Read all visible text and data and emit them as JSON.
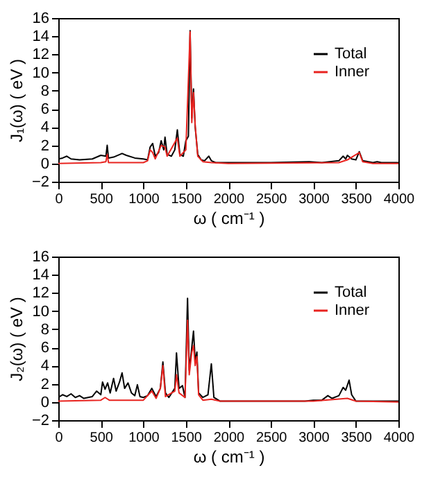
{
  "chart_data": [
    {
      "type": "line",
      "xlabel": "ω ( cm⁻¹ )",
      "ylabel": "J₁(ω) ( eV )",
      "xlim": [
        0,
        4000
      ],
      "xticks": [
        0,
        500,
        1000,
        1500,
        2000,
        2500,
        3000,
        3500,
        4000
      ],
      "ylim": [
        -2,
        16
      ],
      "yticks": [
        -2,
        0,
        2,
        4,
        6,
        8,
        10,
        12,
        14,
        16
      ],
      "grid": false,
      "legend": "top right",
      "line_style": "solid",
      "series": [
        {
          "name": "Total",
          "color": "#000000",
          "x": [
            0,
            50,
            100,
            150,
            250,
            400,
            500,
            560,
            575,
            590,
            650,
            750,
            800,
            900,
            1000,
            1050,
            1080,
            1110,
            1140,
            1180,
            1210,
            1240,
            1255,
            1280,
            1330,
            1370,
            1400,
            1430,
            1470,
            1500,
            1530,
            1550,
            1570,
            1590,
            1610,
            1640,
            1680,
            1720,
            1770,
            1800,
            1850,
            2000,
            2500,
            2950,
            3100,
            3300,
            3350,
            3380,
            3400,
            3450,
            3500,
            3540,
            3580,
            3700,
            3750,
            3800,
            4000
          ],
          "values": [
            0.5,
            0.6,
            0.8,
            0.5,
            0.4,
            0.5,
            0.9,
            0.8,
            2.0,
            0.6,
            0.7,
            1.1,
            0.9,
            0.6,
            0.5,
            0.4,
            1.8,
            2.2,
            0.8,
            1.2,
            2.5,
            1.5,
            2.9,
            1.0,
            0.8,
            1.5,
            3.7,
            1.0,
            0.8,
            2.5,
            3.0,
            14.6,
            5.0,
            8.2,
            4.0,
            1.0,
            0.4,
            0.3,
            0.8,
            0.3,
            0.1,
            0.1,
            0.1,
            0.2,
            0.1,
            0.3,
            0.8,
            0.5,
            0.9,
            0.5,
            0.4,
            1.3,
            0.3,
            0.1,
            0.2,
            0.1,
            0.1
          ]
        },
        {
          "name": "Inner",
          "color": "#e8231f",
          "x": [
            0,
            500,
            560,
            575,
            590,
            1000,
            1050,
            1080,
            1110,
            1140,
            1210,
            1255,
            1280,
            1400,
            1430,
            1500,
            1550,
            1570,
            1590,
            1610,
            1640,
            1700,
            1800,
            2000,
            3300,
            3400,
            3540,
            3580,
            3700,
            4000
          ],
          "values": [
            0.0,
            0.1,
            0.2,
            1.0,
            0.1,
            0.1,
            0.3,
            1.5,
            1.2,
            0.5,
            2.0,
            1.8,
            0.8,
            2.8,
            0.8,
            1.5,
            14.5,
            4.5,
            7.8,
            4.2,
            0.8,
            0.2,
            0.1,
            0.0,
            0.1,
            0.4,
            1.2,
            0.2,
            0.0,
            0.0
          ]
        }
      ]
    },
    {
      "type": "line",
      "xlabel": "ω ( cm⁻¹ )",
      "ylabel": "J₂(ω) ( eV )",
      "xlim": [
        0,
        4000
      ],
      "xticks": [
        0,
        500,
        1000,
        1500,
        2000,
        2500,
        3000,
        3500,
        4000
      ],
      "ylim": [
        -2,
        16
      ],
      "yticks": [
        -2,
        0,
        2,
        4,
        6,
        8,
        10,
        12,
        14,
        16
      ],
      "grid": false,
      "legend": "top right",
      "line_style": "solid",
      "series": [
        {
          "name": "Total",
          "color": "#000000",
          "x": [
            0,
            50,
            100,
            150,
            200,
            250,
            300,
            400,
            450,
            500,
            520,
            550,
            580,
            610,
            650,
            680,
            720,
            750,
            780,
            820,
            860,
            900,
            930,
            960,
            1000,
            1050,
            1100,
            1150,
            1200,
            1230,
            1260,
            1300,
            1370,
            1390,
            1420,
            1460,
            1490,
            1520,
            1540,
            1570,
            1590,
            1610,
            1630,
            1650,
            1700,
            1760,
            1800,
            1830,
            1900,
            2000,
            2900,
            3000,
            3100,
            3170,
            3220,
            3300,
            3350,
            3380,
            3420,
            3450,
            3500,
            4000
          ],
          "values": [
            0.5,
            0.8,
            0.6,
            0.9,
            0.5,
            0.7,
            0.4,
            0.6,
            1.2,
            0.8,
            2.2,
            1.4,
            2.1,
            1.0,
            2.6,
            1.2,
            2.2,
            3.2,
            1.5,
            2.1,
            1.0,
            0.7,
            1.9,
            0.6,
            0.5,
            0.7,
            1.5,
            0.6,
            1.5,
            4.4,
            1.0,
            0.5,
            1.5,
            5.4,
            1.5,
            1.8,
            0.5,
            11.4,
            3.5,
            6.0,
            7.8,
            4.5,
            5.5,
            1.0,
            0.5,
            0.8,
            4.2,
            0.5,
            0.1,
            0.1,
            0.1,
            0.2,
            0.2,
            0.7,
            0.4,
            0.7,
            1.6,
            1.3,
            2.4,
            0.8,
            0.1,
            0.1
          ]
        },
        {
          "name": "Inner",
          "color": "#e8231f",
          "x": [
            0,
            500,
            550,
            600,
            1000,
            1100,
            1150,
            1200,
            1230,
            1260,
            1370,
            1390,
            1420,
            1490,
            1520,
            1540,
            1570,
            1590,
            1610,
            1630,
            1650,
            1700,
            1800,
            1900,
            3000,
            3400,
            3500,
            4000
          ],
          "values": [
            0.1,
            0.2,
            0.5,
            0.2,
            0.2,
            1.2,
            0.4,
            1.5,
            4.0,
            0.6,
            1.2,
            3.0,
            1.0,
            0.5,
            9.0,
            3.0,
            5.5,
            6.2,
            4.0,
            5.0,
            0.8,
            0.2,
            0.3,
            0.1,
            0.1,
            0.4,
            0.1,
            0.0
          ]
        }
      ]
    }
  ]
}
